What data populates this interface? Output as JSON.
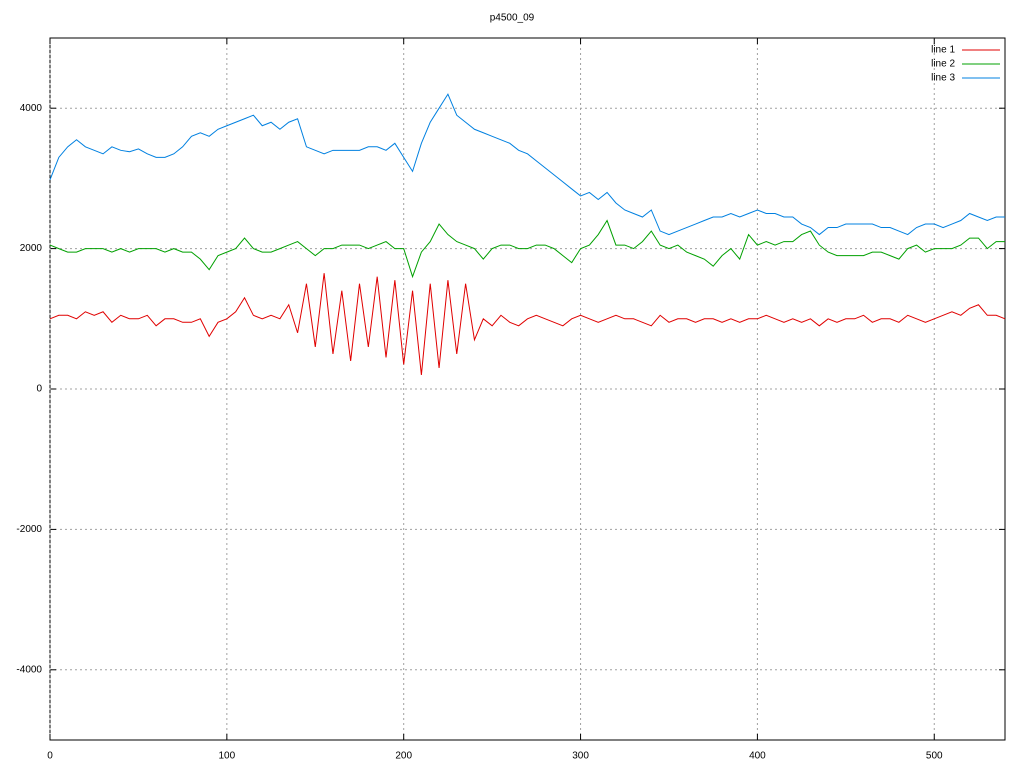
{
  "chart_data": {
    "type": "line",
    "title": "p4500_09",
    "x": [
      0,
      5,
      10,
      15,
      20,
      25,
      30,
      35,
      40,
      45,
      50,
      55,
      60,
      65,
      70,
      75,
      80,
      85,
      90,
      95,
      100,
      105,
      110,
      115,
      120,
      125,
      130,
      135,
      140,
      145,
      150,
      155,
      160,
      165,
      170,
      175,
      180,
      185,
      190,
      195,
      200,
      205,
      210,
      215,
      220,
      225,
      230,
      235,
      240,
      245,
      250,
      255,
      260,
      265,
      270,
      275,
      280,
      285,
      290,
      295,
      300,
      305,
      310,
      315,
      320,
      325,
      330,
      335,
      340,
      345,
      350,
      355,
      360,
      365,
      370,
      375,
      380,
      385,
      390,
      395,
      400,
      405,
      410,
      415,
      420,
      425,
      430,
      435,
      440,
      445,
      450,
      455,
      460,
      465,
      470,
      475,
      480,
      485,
      490,
      495,
      500,
      505,
      510,
      515,
      520,
      525,
      530,
      535,
      540
    ],
    "series": [
      {
        "name": "line 1",
        "color": "#e00000",
        "values": [
          1000,
          1050,
          1050,
          1000,
          1100,
          1050,
          1100,
          950,
          1050,
          1000,
          1000,
          1050,
          900,
          1000,
          1000,
          950,
          950,
          1000,
          750,
          950,
          1000,
          1100,
          1300,
          1050,
          1000,
          1050,
          1000,
          1200,
          800,
          1500,
          600,
          1650,
          500,
          1400,
          400,
          1500,
          600,
          1600,
          450,
          1550,
          350,
          1400,
          200,
          1500,
          300,
          1550,
          500,
          1500,
          700,
          1000,
          900,
          1050,
          950,
          900,
          1000,
          1050,
          1000,
          950,
          900,
          1000,
          1050,
          1000,
          950,
          1000,
          1050,
          1000,
          1000,
          950,
          900,
          1050,
          950,
          1000,
          1000,
          950,
          1000,
          1000,
          950,
          1000,
          950,
          1000,
          1000,
          1050,
          1000,
          950,
          1000,
          950,
          1000,
          900,
          1000,
          950,
          1000,
          1000,
          1050,
          950,
          1000,
          1000,
          950,
          1050,
          1000,
          950,
          1000,
          1050,
          1100,
          1050,
          1150,
          1200,
          1050,
          1050,
          1000
        ]
      },
      {
        "name": "line 2",
        "color": "#00a000",
        "values": [
          2050,
          2000,
          1950,
          1950,
          2000,
          2000,
          2000,
          1950,
          2000,
          1950,
          2000,
          2000,
          2000,
          1950,
          2000,
          1950,
          1950,
          1850,
          1700,
          1900,
          1950,
          2000,
          2150,
          2000,
          1950,
          1950,
          2000,
          2050,
          2100,
          2000,
          1900,
          2000,
          2000,
          2050,
          2050,
          2050,
          2000,
          2050,
          2100,
          2000,
          2000,
          1600,
          1950,
          2100,
          2350,
          2200,
          2100,
          2050,
          2000,
          1850,
          2000,
          2050,
          2050,
          2000,
          2000,
          2050,
          2050,
          2000,
          1900,
          1800,
          2000,
          2050,
          2200,
          2400,
          2050,
          2050,
          2000,
          2100,
          2250,
          2050,
          2000,
          2050,
          1950,
          1900,
          1850,
          1750,
          1900,
          2000,
          1850,
          2200,
          2050,
          2100,
          2050,
          2100,
          2100,
          2200,
          2250,
          2050,
          1950,
          1900,
          1900,
          1900,
          1900,
          1950,
          1950,
          1900,
          1850,
          2000,
          2050,
          1950,
          2000,
          2000,
          2000,
          2050,
          2150,
          2150,
          2000,
          2100,
          2100
        ]
      },
      {
        "name": "line 3",
        "color": "#0080e0",
        "values": [
          2980,
          3300,
          3450,
          3550,
          3450,
          3400,
          3350,
          3450,
          3400,
          3380,
          3420,
          3350,
          3300,
          3300,
          3350,
          3450,
          3600,
          3650,
          3600,
          3700,
          3750,
          3800,
          3850,
          3900,
          3750,
          3800,
          3700,
          3800,
          3850,
          3450,
          3400,
          3350,
          3400,
          3400,
          3400,
          3400,
          3450,
          3450,
          3400,
          3500,
          3300,
          3100,
          3500,
          3800,
          4000,
          4200,
          3900,
          3800,
          3700,
          3650,
          3600,
          3550,
          3500,
          3400,
          3350,
          3250,
          3150,
          3050,
          2950,
          2850,
          2750,
          2800,
          2700,
          2800,
          2650,
          2550,
          2500,
          2450,
          2550,
          2250,
          2200,
          2250,
          2300,
          2350,
          2400,
          2450,
          2450,
          2500,
          2450,
          2500,
          2550,
          2500,
          2500,
          2450,
          2450,
          2350,
          2300,
          2200,
          2300,
          2300,
          2350,
          2350,
          2350,
          2350,
          2300,
          2300,
          2250,
          2200,
          2300,
          2350,
          2350,
          2300,
          2350,
          2400,
          2500,
          2450,
          2400,
          2450,
          2450
        ]
      }
    ],
    "xlim": [
      0,
      540
    ],
    "ylim": [
      -5000,
      5000
    ],
    "xticks": [
      0,
      100,
      200,
      300,
      400,
      500
    ],
    "yticks": [
      -4000,
      -2000,
      0,
      2000,
      4000
    ],
    "grid": true,
    "legend": "top-right"
  }
}
